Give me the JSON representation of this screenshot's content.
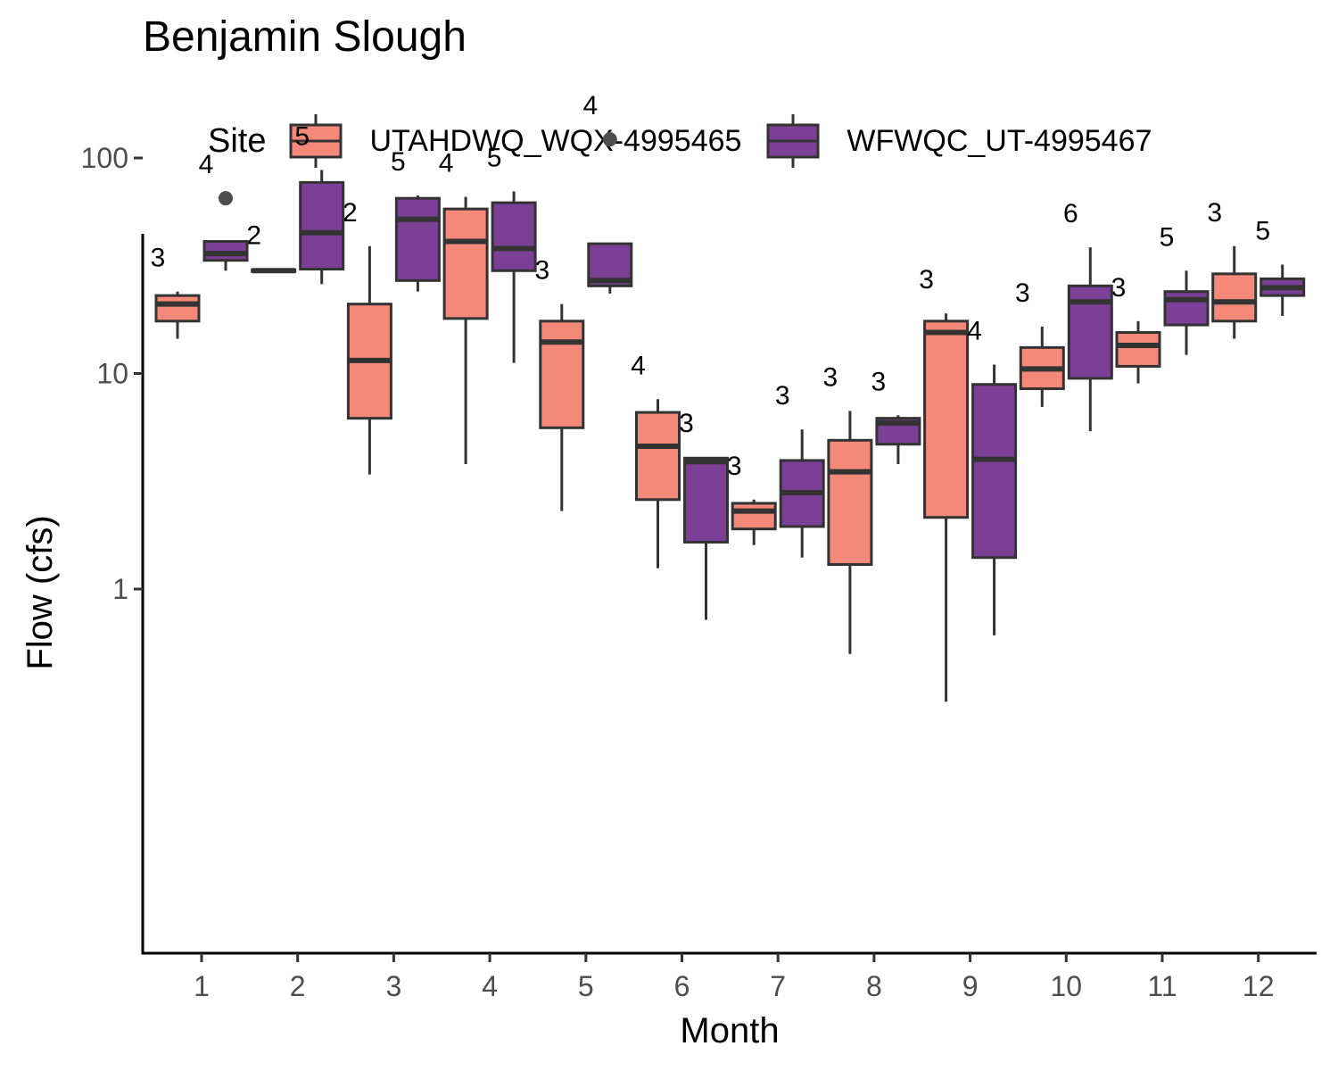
{
  "chart_data": {
    "type": "boxplot",
    "title": "Benjamin Slough",
    "xlabel": "Month",
    "ylabel": "Flow (cfs)",
    "y_scale": "log10",
    "ylim": [
      0.25,
      420
    ],
    "y_ticks": [
      1,
      10,
      100
    ],
    "y_tick_labels": [
      "1",
      "10",
      "100"
    ],
    "categories": [
      "1",
      "2",
      "3",
      "4",
      "5",
      "6",
      "7",
      "8",
      "9",
      "10",
      "11",
      "12"
    ],
    "legend": {
      "title": "Site",
      "position": "top"
    },
    "series": [
      {
        "name": "UTAHDWQ_WQX-4995465",
        "color": "#f4897a",
        "boxes": [
          {
            "month": "1",
            "min": 14.5,
            "q1": 17.5,
            "median": 21,
            "q3": 23,
            "max": 24,
            "n": 3,
            "outliers": []
          },
          {
            "month": "2",
            "min": 29.5,
            "q1": 29.7,
            "median": 30,
            "q3": 30.3,
            "max": 30.5,
            "n": 2,
            "outliers": []
          },
          {
            "month": "3",
            "min": 3.4,
            "q1": 6.2,
            "median": 11.5,
            "q3": 21,
            "max": 39,
            "n": 2,
            "outliers": []
          },
          {
            "month": "4",
            "min": 3.8,
            "q1": 18,
            "median": 41,
            "q3": 58,
            "max": 66,
            "n": 4,
            "outliers": []
          },
          {
            "month": "5",
            "min": 2.3,
            "q1": 5.6,
            "median": 14,
            "q3": 17.5,
            "max": 21,
            "n": 3,
            "outliers": []
          },
          {
            "month": "6",
            "min": 1.25,
            "q1": 2.6,
            "median": 4.6,
            "q3": 6.6,
            "max": 7.6,
            "n": 4,
            "outliers": []
          },
          {
            "month": "7",
            "min": 1.6,
            "q1": 1.9,
            "median": 2.3,
            "q3": 2.5,
            "max": 2.6,
            "n": 3,
            "outliers": []
          },
          {
            "month": "8",
            "min": 0.5,
            "q1": 1.3,
            "median": 3.5,
            "q3": 4.9,
            "max": 6.7,
            "n": 3,
            "outliers": []
          },
          {
            "month": "9",
            "min": 0.3,
            "q1": 2.15,
            "median": 15.5,
            "q3": 17.5,
            "max": 19,
            "n": 3,
            "outliers": []
          },
          {
            "month": "10",
            "min": 7,
            "q1": 8.5,
            "median": 10.5,
            "q3": 13.2,
            "max": 16.5,
            "n": 3,
            "outliers": []
          },
          {
            "month": "11",
            "min": 9,
            "q1": 10.8,
            "median": 13.5,
            "q3": 15.5,
            "max": 17.5,
            "n": 3,
            "outliers": []
          },
          {
            "month": "12",
            "min": 14.5,
            "q1": 17.5,
            "median": 21.5,
            "q3": 29,
            "max": 39,
            "n": 3,
            "outliers": []
          }
        ]
      },
      {
        "name": "WFWQC_UT-4995467",
        "color": "#7b3f96",
        "boxes": [
          {
            "month": "1",
            "min": 30,
            "q1": 33.5,
            "median": 36,
            "q3": 41,
            "max": 41,
            "n": 4,
            "outliers": [
              65
            ]
          },
          {
            "month": "2",
            "min": 26,
            "q1": 30.5,
            "median": 45,
            "q3": 77,
            "max": 88,
            "n": 5,
            "outliers": []
          },
          {
            "month": "3",
            "min": 24,
            "q1": 27,
            "median": 52,
            "q3": 65,
            "max": 67,
            "n": 5,
            "outliers": []
          },
          {
            "month": "4",
            "min": 11.2,
            "q1": 30,
            "median": 38,
            "q3": 62,
            "max": 70,
            "n": 5,
            "outliers": []
          },
          {
            "month": "5",
            "min": 23.5,
            "q1": 25.5,
            "median": 27,
            "q3": 40,
            "max": 40,
            "n": 4,
            "outliers": [
              122
            ]
          },
          {
            "month": "6",
            "min": 0.72,
            "q1": 1.65,
            "median": 3.9,
            "q3": 4.05,
            "max": 4.1,
            "n": 3,
            "outliers": []
          },
          {
            "month": "7",
            "min": 1.4,
            "q1": 1.95,
            "median": 2.8,
            "q3": 3.95,
            "max": 5.5,
            "n": 3,
            "outliers": []
          },
          {
            "month": "8",
            "min": 3.8,
            "q1": 4.7,
            "median": 5.9,
            "q3": 6.2,
            "max": 6.4,
            "n": 3,
            "outliers": []
          },
          {
            "month": "9",
            "min": 0.61,
            "q1": 1.4,
            "median": 4,
            "q3": 8.9,
            "max": 11,
            "n": 4,
            "outliers": []
          },
          {
            "month": "10",
            "min": 5.4,
            "q1": 9.5,
            "median": 21.5,
            "q3": 25.5,
            "max": 38.5,
            "n": 6,
            "outliers": []
          },
          {
            "month": "11",
            "min": 12.2,
            "q1": 16.8,
            "median": 22,
            "q3": 24,
            "max": 30,
            "n": 5,
            "outliers": []
          },
          {
            "month": "12",
            "min": 18.5,
            "q1": 23,
            "median": 25,
            "q3": 27.5,
            "max": 32,
            "n": 5,
            "outliers": []
          }
        ]
      }
    ]
  }
}
